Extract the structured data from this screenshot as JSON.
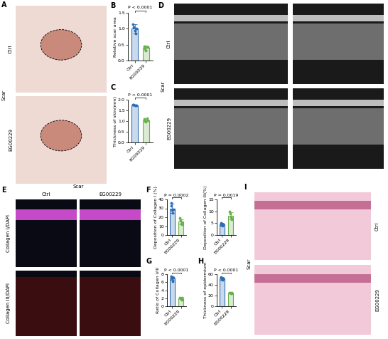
{
  "chart_data": [
    {
      "type": "bar",
      "categories": [
        "Ctrl",
        "EG00229"
      ],
      "values": [
        1.0,
        0.4
      ],
      "errors": [
        0.15,
        0.06
      ],
      "points": [
        [
          1.15,
          1.05,
          0.95,
          0.85,
          1.0
        ],
        [
          0.45,
          0.38,
          0.32,
          0.42,
          0.43
        ]
      ],
      "colors": [
        "#2e6db4",
        "#6ab04c"
      ],
      "y_label": "Relative scar area",
      "annotation": "P < 0.0001",
      "ylim": [
        0.0,
        1.5
      ],
      "yticks": [
        0.0,
        0.5,
        1.0,
        1.5
      ]
    },
    {
      "type": "bar",
      "categories": [
        "Ctrl",
        "EG00229"
      ],
      "values": [
        1.75,
        1.05
      ],
      "errors": [
        0.03,
        0.06
      ],
      "points": [
        [
          1.78,
          1.76,
          1.74,
          1.72,
          1.75
        ],
        [
          1.1,
          1.0,
          0.98,
          1.12,
          1.05
        ]
      ],
      "colors": [
        "#2e6db4",
        "#6ab04c"
      ],
      "y_label": "Thickness of skin(mm)",
      "annotation": "P < 0.0001",
      "ylim": [
        0.0,
        2.0
      ],
      "yticks": [
        0.0,
        0.5,
        1.0,
        1.5,
        2.0
      ]
    },
    {
      "type": "bar",
      "categories": [
        "Ctrl",
        "EG00229"
      ],
      "values": [
        30,
        15
      ],
      "errors": [
        5,
        3
      ],
      "points": [
        [
          36,
          33,
          28,
          25,
          29
        ],
        [
          19,
          17,
          13,
          12,
          14
        ]
      ],
      "colors": [
        "#2e6db4",
        "#6ab04c"
      ],
      "y_label": "Deposition of Collagen I (%)",
      "annotation": "P = 0.0002",
      "ylim": [
        0,
        40
      ],
      "yticks": [
        0,
        10,
        20,
        30,
        40
      ]
    },
    {
      "type": "bar",
      "categories": [
        "Ctrl",
        "EG00229"
      ],
      "values": [
        4.5,
        8
      ],
      "errors": [
        0.5,
        1.5
      ],
      "points": [
        [
          4.2,
          5.0,
          4.8,
          3.9,
          4.6
        ],
        [
          10,
          9,
          7.5,
          6.5,
          7
        ]
      ],
      "colors": [
        "#2e6db4",
        "#6ab04c"
      ],
      "y_label": "Deposition of Collagen III(%)",
      "annotation": "P = 0.0019",
      "ylim": [
        0,
        15
      ],
      "yticks": [
        0,
        5,
        10,
        15
      ]
    },
    {
      "type": "bar",
      "categories": [
        "Ctrl",
        "EG00229"
      ],
      "values": [
        7,
        2
      ],
      "errors": [
        0.5,
        0.25
      ],
      "points": [
        [
          7.5,
          7.3,
          6.9,
          6.2,
          7.1
        ],
        [
          2.2,
          2.0,
          1.8,
          1.6,
          2.1
        ]
      ],
      "colors": [
        "#2e6db4",
        "#6ab04c"
      ],
      "y_label": "Ratio of Collagen I/III",
      "annotation": "P < 0.0001",
      "ylim": [
        0,
        8
      ],
      "yticks": [
        0,
        2,
        4,
        6,
        8
      ]
    },
    {
      "type": "bar",
      "categories": [
        "Ctrl",
        "EG00229"
      ],
      "values": [
        52,
        25
      ],
      "errors": [
        2.5,
        0.8
      ],
      "points": [
        [
          55,
          53,
          51,
          49,
          52
        ],
        [
          26,
          25,
          24.5,
          24,
          25.5
        ]
      ],
      "colors": [
        "#2e6db4",
        "#6ab04c"
      ],
      "y_label": "Thickness of epidermium",
      "annotation": "P < 0.0001",
      "ylim": [
        0,
        60
      ],
      "yticks": [
        0,
        20,
        40,
        60
      ]
    }
  ],
  "panel_labels": [
    "A",
    "B",
    "C",
    "D",
    "E",
    "F",
    "G",
    "H",
    "I"
  ],
  "images": {
    "A": {
      "group": "Scar",
      "rows": [
        "Ctrl",
        "EG00229"
      ]
    },
    "D": {
      "group": "Scar",
      "rows": [
        "Ctrl",
        "EG00229"
      ]
    },
    "E": {
      "group": "Scar",
      "columns": [
        "Ctrl",
        "EG00229"
      ],
      "rows": [
        "Collagen I/DAPI",
        "Collagen III/DAPI"
      ]
    },
    "I": {
      "group": "Scar",
      "rows": [
        "Ctrl",
        "EG00229"
      ]
    }
  }
}
